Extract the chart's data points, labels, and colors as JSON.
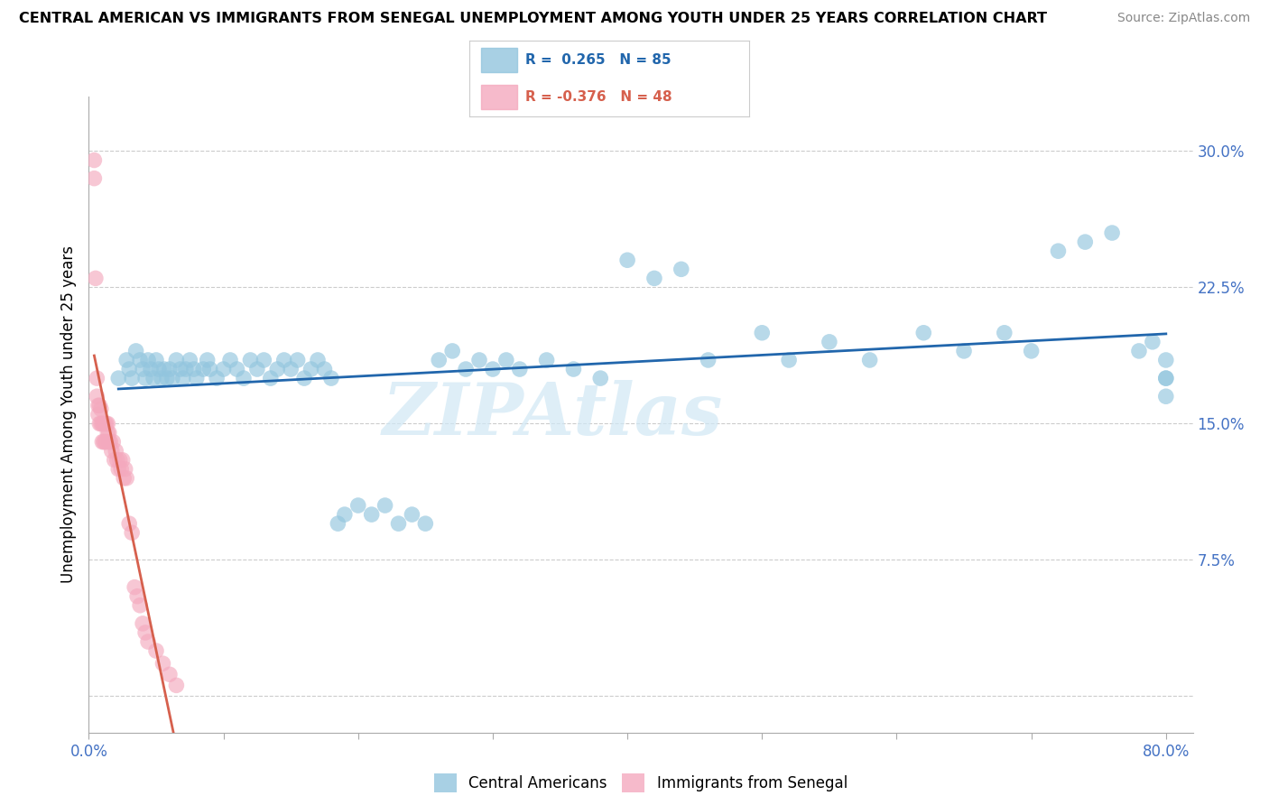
{
  "title": "CENTRAL AMERICAN VS IMMIGRANTS FROM SENEGAL UNEMPLOYMENT AMONG YOUTH UNDER 25 YEARS CORRELATION CHART",
  "source": "Source: ZipAtlas.com",
  "ylabel": "Unemployment Among Youth under 25 years",
  "xlim": [
    0.0,
    0.82
  ],
  "ylim": [
    -0.02,
    0.33
  ],
  "xticks": [
    0.0,
    0.1,
    0.2,
    0.3,
    0.4,
    0.5,
    0.6,
    0.7,
    0.8
  ],
  "xticklabels": [
    "0.0%",
    "",
    "",
    "",
    "",
    "",
    "",
    "",
    "80.0%"
  ],
  "yticks_right": [
    0.0,
    0.075,
    0.15,
    0.225,
    0.3
  ],
  "yticklabels_right": [
    "",
    "7.5%",
    "15.0%",
    "22.5%",
    "30.0%"
  ],
  "R_blue": 0.265,
  "N_blue": 85,
  "R_pink": -0.376,
  "N_pink": 48,
  "blue_color": "#92c5de",
  "pink_color": "#f4a9be",
  "blue_line_color": "#2166ac",
  "pink_line_color": "#d6604d",
  "watermark": "ZIPAtlas",
  "blue_scatter_x": [
    0.022,
    0.028,
    0.03,
    0.032,
    0.035,
    0.038,
    0.04,
    0.042,
    0.044,
    0.046,
    0.048,
    0.05,
    0.052,
    0.054,
    0.056,
    0.058,
    0.06,
    0.062,
    0.065,
    0.068,
    0.07,
    0.072,
    0.075,
    0.078,
    0.08,
    0.085,
    0.088,
    0.09,
    0.095,
    0.1,
    0.105,
    0.11,
    0.115,
    0.12,
    0.125,
    0.13,
    0.135,
    0.14,
    0.145,
    0.15,
    0.155,
    0.16,
    0.165,
    0.17,
    0.175,
    0.18,
    0.185,
    0.19,
    0.2,
    0.21,
    0.22,
    0.23,
    0.24,
    0.25,
    0.26,
    0.27,
    0.28,
    0.29,
    0.3,
    0.31,
    0.32,
    0.34,
    0.36,
    0.38,
    0.4,
    0.42,
    0.44,
    0.46,
    0.5,
    0.52,
    0.55,
    0.58,
    0.62,
    0.65,
    0.68,
    0.7,
    0.72,
    0.74,
    0.76,
    0.78,
    0.79,
    0.8,
    0.8,
    0.8,
    0.8
  ],
  "blue_scatter_y": [
    0.175,
    0.185,
    0.18,
    0.175,
    0.19,
    0.185,
    0.18,
    0.175,
    0.185,
    0.18,
    0.175,
    0.185,
    0.18,
    0.175,
    0.18,
    0.175,
    0.18,
    0.175,
    0.185,
    0.18,
    0.175,
    0.18,
    0.185,
    0.18,
    0.175,
    0.18,
    0.185,
    0.18,
    0.175,
    0.18,
    0.185,
    0.18,
    0.175,
    0.185,
    0.18,
    0.185,
    0.175,
    0.18,
    0.185,
    0.18,
    0.185,
    0.175,
    0.18,
    0.185,
    0.18,
    0.175,
    0.095,
    0.1,
    0.105,
    0.1,
    0.105,
    0.095,
    0.1,
    0.095,
    0.185,
    0.19,
    0.18,
    0.185,
    0.18,
    0.185,
    0.18,
    0.185,
    0.18,
    0.175,
    0.24,
    0.23,
    0.235,
    0.185,
    0.2,
    0.185,
    0.195,
    0.185,
    0.2,
    0.19,
    0.2,
    0.19,
    0.245,
    0.25,
    0.255,
    0.19,
    0.195,
    0.175,
    0.185,
    0.175,
    0.165
  ],
  "pink_scatter_x": [
    0.004,
    0.004,
    0.005,
    0.006,
    0.006,
    0.007,
    0.007,
    0.008,
    0.008,
    0.009,
    0.009,
    0.01,
    0.01,
    0.011,
    0.011,
    0.012,
    0.012,
    0.013,
    0.013,
    0.014,
    0.014,
    0.015,
    0.015,
    0.016,
    0.017,
    0.018,
    0.019,
    0.02,
    0.021,
    0.022,
    0.023,
    0.024,
    0.025,
    0.026,
    0.027,
    0.028,
    0.03,
    0.032,
    0.034,
    0.036,
    0.038,
    0.04,
    0.042,
    0.044,
    0.05,
    0.055,
    0.06,
    0.065
  ],
  "pink_scatter_y": [
    0.295,
    0.285,
    0.23,
    0.175,
    0.165,
    0.16,
    0.155,
    0.16,
    0.15,
    0.158,
    0.15,
    0.15,
    0.14,
    0.15,
    0.14,
    0.14,
    0.15,
    0.14,
    0.15,
    0.145,
    0.15,
    0.14,
    0.145,
    0.14,
    0.135,
    0.14,
    0.13,
    0.135,
    0.13,
    0.125,
    0.13,
    0.125,
    0.13,
    0.12,
    0.125,
    0.12,
    0.095,
    0.09,
    0.06,
    0.055,
    0.05,
    0.04,
    0.035,
    0.03,
    0.025,
    0.018,
    0.012,
    0.006
  ]
}
